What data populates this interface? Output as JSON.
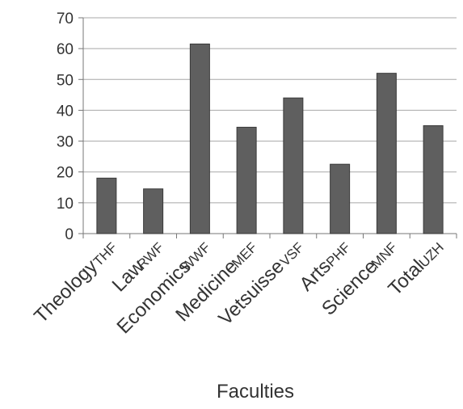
{
  "chart_data": {
    "type": "bar",
    "categories": [
      "Theology",
      "Law",
      "Economics",
      "Medicine",
      "Vetsuisse",
      "Arts",
      "Science",
      "Total"
    ],
    "category_abbreviations": [
      "THF",
      "RWF",
      "WWF",
      "MEF",
      "VSF",
      "PHF",
      "MNF",
      "UZH"
    ],
    "values": [
      18,
      14.5,
      61.5,
      34.5,
      44,
      22.5,
      52,
      35
    ],
    "title": "",
    "xlabel": "Faculties",
    "ylabel": "",
    "ylim": [
      0,
      70
    ],
    "yticks": [
      "0",
      "10",
      "20",
      "30",
      "40",
      "50",
      "60",
      "70"
    ],
    "grid": true,
    "legend": "none",
    "colors": {
      "bar": "#5f5f5f",
      "bar_edge": "#3a3a3a",
      "grid": "#a8a8a8",
      "axis": "#777777",
      "text": "#333333"
    }
  }
}
